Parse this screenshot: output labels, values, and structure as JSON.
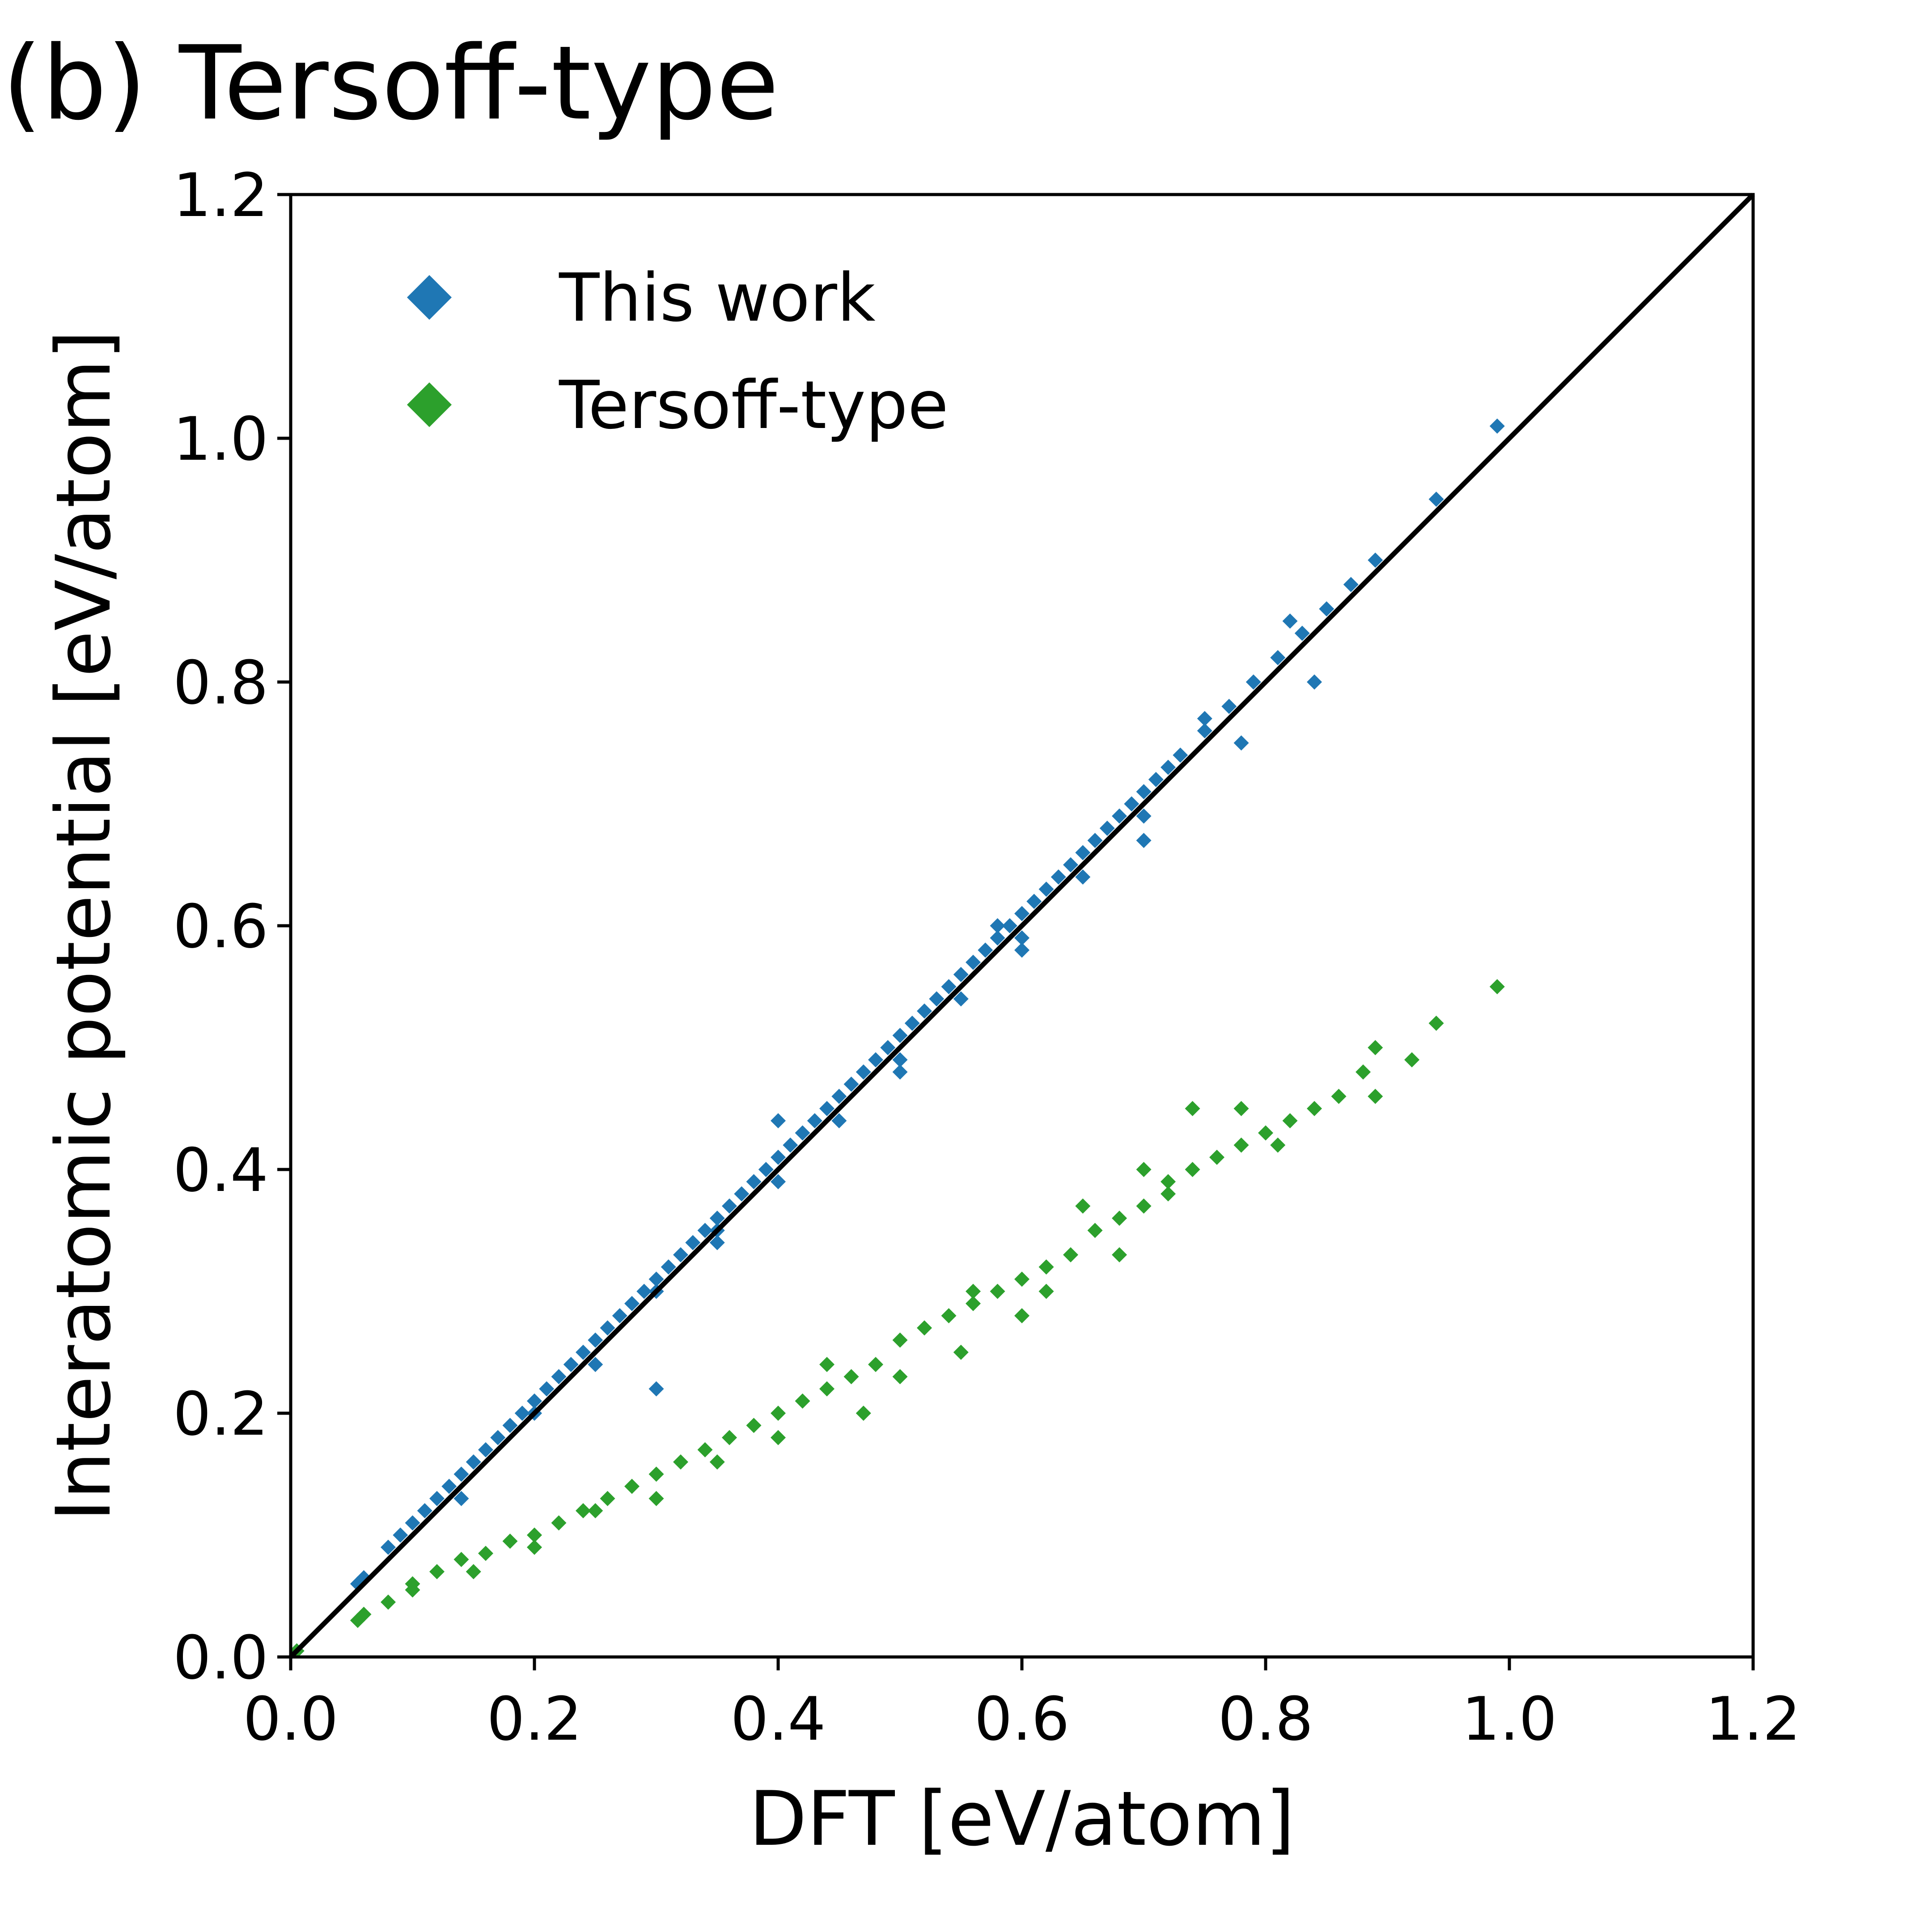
{
  "panel_title": "(b) Tersoff-type",
  "chart_data": {
    "type": "scatter",
    "xlabel": "DFT [eV/atom]",
    "ylabel": "Interatomic potential [eV/atom]",
    "xlim": [
      0.0,
      1.2
    ],
    "ylim": [
      0.0,
      1.2
    ],
    "xticks": [
      "0.0",
      "0.2",
      "0.4",
      "0.6",
      "0.8",
      "1.0",
      "1.2"
    ],
    "yticks": [
      "0.0",
      "0.2",
      "0.4",
      "0.6",
      "0.8",
      "1.0",
      "1.2"
    ],
    "grid": false,
    "legend_position": "top-left",
    "reference_line": {
      "from": [
        0.0,
        0.0
      ],
      "to": [
        1.2,
        1.2
      ],
      "color": "#000000"
    },
    "series": [
      {
        "name": "This work",
        "color": "#1f77b4",
        "marker": "diamond",
        "points": [
          [
            0.005,
            0.005
          ],
          [
            0.055,
            0.06
          ],
          [
            0.06,
            0.065
          ],
          [
            0.08,
            0.09
          ],
          [
            0.09,
            0.1
          ],
          [
            0.1,
            0.11
          ],
          [
            0.11,
            0.12
          ],
          [
            0.12,
            0.13
          ],
          [
            0.13,
            0.14
          ],
          [
            0.14,
            0.15
          ],
          [
            0.14,
            0.13
          ],
          [
            0.15,
            0.16
          ],
          [
            0.16,
            0.17
          ],
          [
            0.17,
            0.18
          ],
          [
            0.18,
            0.19
          ],
          [
            0.19,
            0.2
          ],
          [
            0.2,
            0.21
          ],
          [
            0.21,
            0.22
          ],
          [
            0.22,
            0.23
          ],
          [
            0.23,
            0.24
          ],
          [
            0.24,
            0.25
          ],
          [
            0.25,
            0.26
          ],
          [
            0.26,
            0.27
          ],
          [
            0.27,
            0.28
          ],
          [
            0.28,
            0.29
          ],
          [
            0.29,
            0.3
          ],
          [
            0.3,
            0.31
          ],
          [
            0.31,
            0.32
          ],
          [
            0.32,
            0.33
          ],
          [
            0.33,
            0.34
          ],
          [
            0.34,
            0.35
          ],
          [
            0.35,
            0.36
          ],
          [
            0.36,
            0.37
          ],
          [
            0.37,
            0.38
          ],
          [
            0.38,
            0.39
          ],
          [
            0.39,
            0.4
          ],
          [
            0.4,
            0.41
          ],
          [
            0.41,
            0.42
          ],
          [
            0.42,
            0.43
          ],
          [
            0.43,
            0.44
          ],
          [
            0.44,
            0.45
          ],
          [
            0.45,
            0.46
          ],
          [
            0.46,
            0.47
          ],
          [
            0.47,
            0.48
          ],
          [
            0.48,
            0.49
          ],
          [
            0.49,
            0.5
          ],
          [
            0.5,
            0.51
          ],
          [
            0.51,
            0.52
          ],
          [
            0.52,
            0.53
          ],
          [
            0.53,
            0.54
          ],
          [
            0.54,
            0.55
          ],
          [
            0.55,
            0.56
          ],
          [
            0.56,
            0.57
          ],
          [
            0.57,
            0.58
          ],
          [
            0.58,
            0.59
          ],
          [
            0.59,
            0.6
          ],
          [
            0.6,
            0.61
          ],
          [
            0.61,
            0.62
          ],
          [
            0.62,
            0.63
          ],
          [
            0.63,
            0.64
          ],
          [
            0.64,
            0.65
          ],
          [
            0.65,
            0.66
          ],
          [
            0.66,
            0.67
          ],
          [
            0.67,
            0.68
          ],
          [
            0.68,
            0.69
          ],
          [
            0.69,
            0.7
          ],
          [
            0.7,
            0.71
          ],
          [
            0.71,
            0.72
          ],
          [
            0.72,
            0.73
          ],
          [
            0.73,
            0.74
          ],
          [
            0.75,
            0.76
          ],
          [
            0.77,
            0.78
          ],
          [
            0.79,
            0.8
          ],
          [
            0.81,
            0.82
          ],
          [
            0.83,
            0.84
          ],
          [
            0.85,
            0.86
          ],
          [
            0.87,
            0.88
          ],
          [
            0.89,
            0.9
          ],
          [
            0.94,
            0.95
          ],
          [
            0.99,
            1.01
          ],
          [
            0.2,
            0.2
          ],
          [
            0.25,
            0.24
          ],
          [
            0.3,
            0.3
          ],
          [
            0.35,
            0.34
          ],
          [
            0.4,
            0.39
          ],
          [
            0.45,
            0.44
          ],
          [
            0.5,
            0.49
          ],
          [
            0.55,
            0.54
          ],
          [
            0.6,
            0.59
          ],
          [
            0.65,
            0.64
          ],
          [
            0.7,
            0.69
          ],
          [
            0.3,
            0.22
          ],
          [
            0.35,
            0.35
          ],
          [
            0.4,
            0.44
          ],
          [
            0.5,
            0.48
          ],
          [
            0.58,
            0.6
          ],
          [
            0.6,
            0.58
          ],
          [
            0.7,
            0.67
          ],
          [
            0.78,
            0.75
          ],
          [
            0.84,
            0.8
          ],
          [
            0.75,
            0.77
          ],
          [
            0.82,
            0.85
          ]
        ]
      },
      {
        "name": "Tersoff-type",
        "color": "#2ca02c",
        "marker": "diamond",
        "points": [
          [
            0.005,
            0.005
          ],
          [
            0.055,
            0.03
          ],
          [
            0.06,
            0.035
          ],
          [
            0.08,
            0.045
          ],
          [
            0.1,
            0.055
          ],
          [
            0.12,
            0.07
          ],
          [
            0.14,
            0.08
          ],
          [
            0.16,
            0.085
          ],
          [
            0.18,
            0.095
          ],
          [
            0.2,
            0.1
          ],
          [
            0.22,
            0.11
          ],
          [
            0.24,
            0.12
          ],
          [
            0.26,
            0.13
          ],
          [
            0.28,
            0.14
          ],
          [
            0.3,
            0.15
          ],
          [
            0.32,
            0.16
          ],
          [
            0.34,
            0.17
          ],
          [
            0.36,
            0.18
          ],
          [
            0.38,
            0.19
          ],
          [
            0.4,
            0.2
          ],
          [
            0.42,
            0.21
          ],
          [
            0.44,
            0.22
          ],
          [
            0.46,
            0.23
          ],
          [
            0.48,
            0.24
          ],
          [
            0.5,
            0.26
          ],
          [
            0.52,
            0.27
          ],
          [
            0.54,
            0.28
          ],
          [
            0.56,
            0.29
          ],
          [
            0.58,
            0.3
          ],
          [
            0.6,
            0.31
          ],
          [
            0.62,
            0.32
          ],
          [
            0.64,
            0.33
          ],
          [
            0.66,
            0.35
          ],
          [
            0.68,
            0.36
          ],
          [
            0.7,
            0.37
          ],
          [
            0.72,
            0.39
          ],
          [
            0.74,
            0.4
          ],
          [
            0.76,
            0.41
          ],
          [
            0.78,
            0.42
          ],
          [
            0.8,
            0.43
          ],
          [
            0.82,
            0.44
          ],
          [
            0.84,
            0.45
          ],
          [
            0.86,
            0.46
          ],
          [
            0.88,
            0.48
          ],
          [
            0.89,
            0.5
          ],
          [
            0.94,
            0.52
          ],
          [
            0.99,
            0.55
          ],
          [
            0.92,
            0.49
          ],
          [
            0.89,
            0.46
          ],
          [
            0.81,
            0.42
          ],
          [
            0.74,
            0.45
          ],
          [
            0.68,
            0.33
          ],
          [
            0.6,
            0.28
          ],
          [
            0.55,
            0.25
          ],
          [
            0.47,
            0.2
          ],
          [
            0.4,
            0.18
          ],
          [
            0.35,
            0.16
          ],
          [
            0.3,
            0.13
          ],
          [
            0.25,
            0.12
          ],
          [
            0.2,
            0.09
          ],
          [
            0.15,
            0.07
          ],
          [
            0.1,
            0.06
          ],
          [
            0.44,
            0.24
          ],
          [
            0.5,
            0.23
          ],
          [
            0.56,
            0.3
          ],
          [
            0.62,
            0.3
          ],
          [
            0.7,
            0.4
          ],
          [
            0.78,
            0.45
          ],
          [
            0.65,
            0.37
          ],
          [
            0.72,
            0.38
          ]
        ]
      }
    ]
  }
}
